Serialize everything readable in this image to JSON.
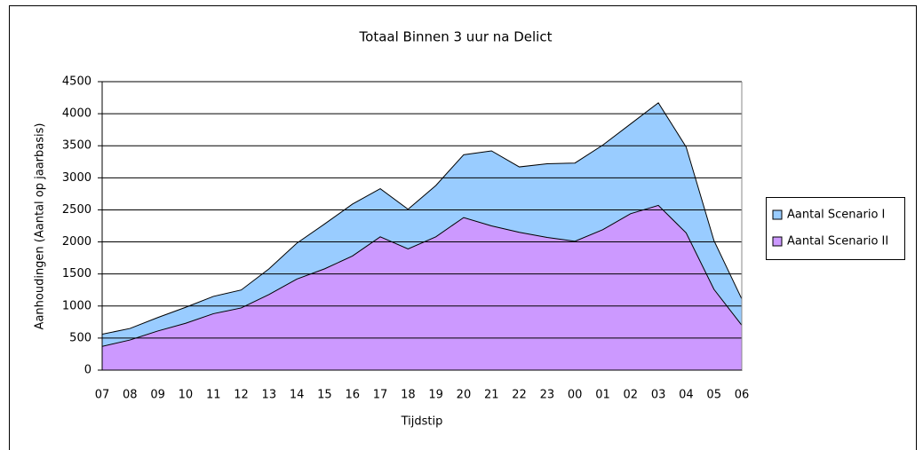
{
  "chart_data": {
    "type": "area",
    "title": "Totaal Binnen 3 uur na Delict",
    "x_label": "Tijdstip",
    "y_label": "Aanhoudingen  (Aantal op jaarbasis)",
    "categories": [
      "07",
      "08",
      "09",
      "10",
      "11",
      "12",
      "13",
      "14",
      "15",
      "16",
      "17",
      "18",
      "19",
      "20",
      "21",
      "22",
      "23",
      "00",
      "01",
      "02",
      "03",
      "04",
      "05",
      "06"
    ],
    "series": [
      {
        "name": "Aantal Scenario  I",
        "color": "#99ccff",
        "values": [
          560,
          650,
          820,
          980,
          1150,
          1250,
          1580,
          1980,
          2280,
          2590,
          2830,
          2510,
          2880,
          3360,
          3420,
          3170,
          3220,
          3230,
          3510,
          3840,
          4170,
          3480,
          2020,
          1110
        ]
      },
      {
        "name": "Aantal Scenario  II",
        "color": "#cc99ff",
        "values": [
          370,
          470,
          610,
          730,
          880,
          970,
          1180,
          1420,
          1580,
          1780,
          2080,
          1890,
          2080,
          2380,
          2250,
          2150,
          2070,
          2010,
          2190,
          2440,
          2570,
          2140,
          1260,
          700
        ]
      }
    ],
    "ylim": [
      0,
      4500
    ],
    "yticks": [
      0,
      500,
      1000,
      1500,
      2000,
      2500,
      3000,
      3500,
      4000,
      4500
    ],
    "grid": true,
    "legend": "right"
  }
}
